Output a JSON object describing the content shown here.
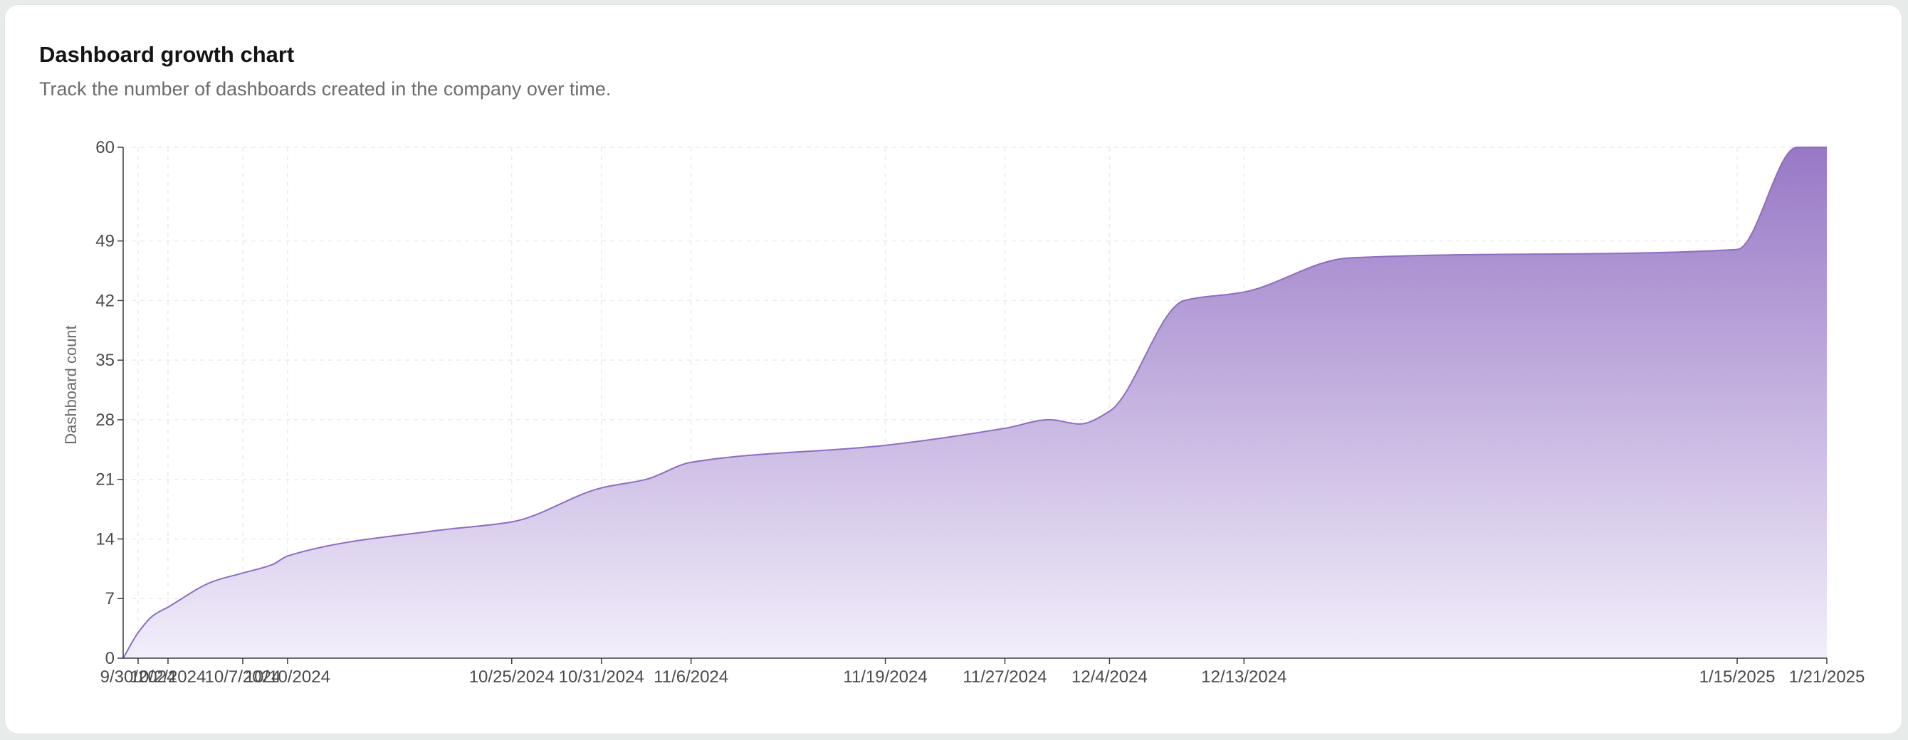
{
  "card": {
    "title": "Dashboard growth chart",
    "subtitle": "Track the number of dashboards created in the company over time."
  },
  "chart_data": {
    "type": "area",
    "ylabel": "Dashboard count",
    "xlabel": "",
    "ylim": [
      0,
      60
    ],
    "yticks": [
      0,
      7,
      14,
      21,
      28,
      35,
      42,
      49,
      60
    ],
    "x_tick_labels": [
      "9/30/2024",
      "10/2/2024",
      "10/7/2024",
      "10/10/2024",
      "10/25/2024",
      "10/31/2024",
      "11/6/2024",
      "11/19/2024",
      "11/27/2024",
      "12/4/2024",
      "12/13/2024",
      "1/15/2025",
      "1/21/2025"
    ],
    "x_range_dates": [
      "9/29/2024",
      "1/21/2025"
    ],
    "series": [
      {
        "points": [
          {
            "x": "9/29/2024",
            "y": 0
          },
          {
            "x": "9/30/2024",
            "y": 3
          },
          {
            "x": "10/1/2024",
            "y": 5
          },
          {
            "x": "10/2/2024",
            "y": 6
          },
          {
            "x": "10/5/2024",
            "y": 9
          },
          {
            "x": "10/7/2024",
            "y": 10
          },
          {
            "x": "10/9/2024",
            "y": 11
          },
          {
            "x": "10/10/2024",
            "y": 12
          },
          {
            "x": "10/20/2024",
            "y": 15
          },
          {
            "x": "10/25/2024",
            "y": 16
          },
          {
            "x": "10/31/2024",
            "y": 20
          },
          {
            "x": "11/3/2024",
            "y": 21
          },
          {
            "x": "11/6/2024",
            "y": 23
          },
          {
            "x": "11/19/2024",
            "y": 25
          },
          {
            "x": "11/27/2024",
            "y": 27
          },
          {
            "x": "11/30/2024",
            "y": 28
          },
          {
            "x": "12/2/2024",
            "y": 27.5
          },
          {
            "x": "12/4/2024",
            "y": 29
          },
          {
            "x": "12/9/2024",
            "y": 42
          },
          {
            "x": "12/13/2024",
            "y": 43
          },
          {
            "x": "12/20/2024",
            "y": 47
          },
          {
            "x": "1/15/2025",
            "y": 48
          },
          {
            "x": "1/19/2025",
            "y": 60
          },
          {
            "x": "1/21/2025",
            "y": 60
          }
        ]
      }
    ],
    "grid": true,
    "legend": "none",
    "colors": {
      "line": "#8e6cc4",
      "fill_top": "#9878c6",
      "fill_bottom": "#f2eefa",
      "grid": "#ececec",
      "axis": "#3c3c3c"
    }
  }
}
